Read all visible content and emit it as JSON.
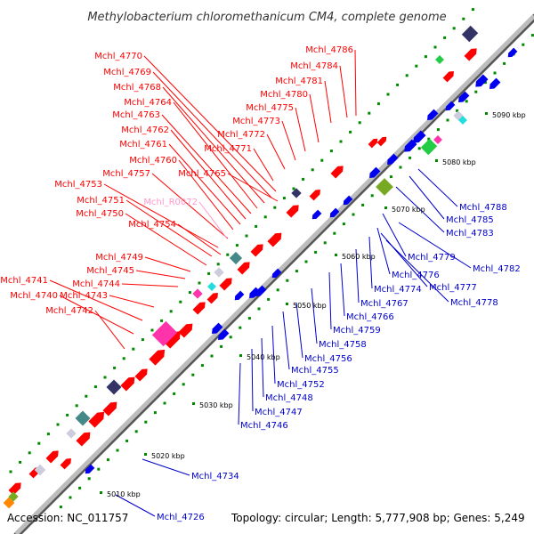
{
  "title": "Methylobacterium chloromethanicum CM4, complete genome",
  "footer": {
    "accession": "Accession: NC_011757",
    "topology": "Topology: circular; Length: 5,777,908 bp; Genes: 5,249"
  },
  "colors": {
    "forward_label": "#ff0000",
    "reverse_label": "#0000cc",
    "rna_label": "#ff99cc",
    "backbone": "#999999",
    "tick": "#008800",
    "fwd_gene": "#ff0000",
    "rev_gene": "#0000ee",
    "cds_other": [
      "#ff33aa",
      "#333366",
      "#448888",
      "#99cc33",
      "#ccccdd",
      "#22dddd",
      "#77aa22",
      "#ff8800",
      "#22cc44"
    ]
  },
  "kbp_ticks": [
    "5010 kbp",
    "5020 kbp",
    "5030 kbp",
    "5040 kbp",
    "5050 kbp",
    "5060 kbp",
    "5070 kbp",
    "5080 kbp",
    "5090 kbp"
  ],
  "upper_labels": [
    "Mchl_4786",
    "Mchl_4784",
    "Mchl_4781",
    "Mchl_4780",
    "Mchl_4775",
    "Mchl_4773",
    "Mchl_4772",
    "Mchl_4771",
    "Mchl_4770",
    "Mchl_4769",
    "Mchl_4768",
    "Mchl_4764",
    "Mchl_4763",
    "Mchl_4762",
    "Mchl_4761",
    "Mchl_4760",
    "Mchl_4765",
    "Mchl_4757",
    "Mchl_4753",
    "Mchl_4751",
    "Mchl_4750",
    "Mchl_4754",
    "Mchl_R0072",
    "Mchl_4749",
    "Mchl_4745",
    "Mchl_4744",
    "Mchl_4741",
    "Mchl_4740",
    "Mchl_4743",
    "Mchl_4742"
  ],
  "lower_labels": [
    "Mchl_4788",
    "Mchl_4785",
    "Mchl_4783",
    "Mchl_4779",
    "Mchl_4782",
    "Mchl_4776",
    "Mchl_4777",
    "Mchl_4774",
    "Mchl_4778",
    "Mchl_4767",
    "Mchl_4766",
    "Mchl_4759",
    "Mchl_4758",
    "Mchl_4756",
    "Mchl_4755",
    "Mchl_4752",
    "Mchl_4748",
    "Mchl_4747",
    "Mchl_4746",
    "Mchl_4734",
    "Mchl_4726"
  ]
}
